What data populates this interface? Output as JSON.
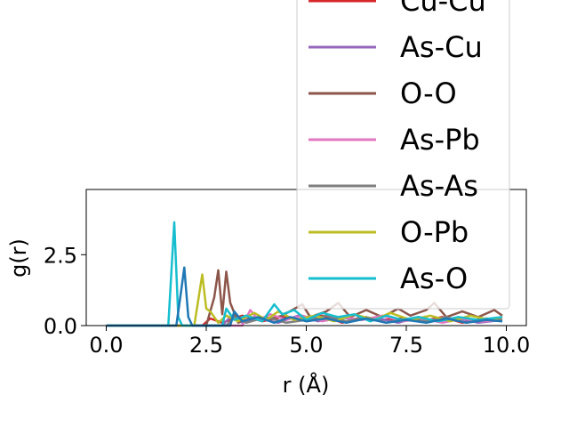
{
  "chart_data": {
    "type": "line",
    "xlabel": "r (Å)",
    "ylabel": "g(r)",
    "xlim": [
      -0.5,
      10.5
    ],
    "ylim": [
      0,
      4.8
    ],
    "xticks": [
      0.0,
      2.5,
      5.0,
      7.5,
      10.0
    ],
    "xtick_labels": [
      "0.0",
      "2.5",
      "5.0",
      "7.5",
      "10.0"
    ],
    "yticks": [
      0.0,
      2.5
    ],
    "ytick_labels": [
      "0.0",
      "2.5"
    ],
    "grid": false,
    "legend_position": "upper-right",
    "series": [
      {
        "name": "Cu-Cu",
        "color": "#d62728",
        "points": [
          [
            0,
            0
          ],
          [
            2.4,
            0
          ],
          [
            2.6,
            0.25
          ],
          [
            2.9,
            0.1
          ],
          [
            3.4,
            0.35
          ],
          [
            3.9,
            0.15
          ],
          [
            4.4,
            0.3
          ],
          [
            4.9,
            0.2
          ],
          [
            5.4,
            0.35
          ],
          [
            5.9,
            0.1
          ],
          [
            6.4,
            0.3
          ],
          [
            6.9,
            0.2
          ],
          [
            7.4,
            0.25
          ],
          [
            7.9,
            0.15
          ],
          [
            8.4,
            0.3
          ],
          [
            8.9,
            0.1
          ],
          [
            9.4,
            0.25
          ],
          [
            9.9,
            0.2
          ]
        ]
      },
      {
        "name": "As-Cu",
        "color": "#9467bd",
        "points": [
          [
            0,
            0
          ],
          [
            2.9,
            0
          ],
          [
            3.1,
            0.3
          ],
          [
            3.4,
            0.1
          ],
          [
            3.8,
            0.25
          ],
          [
            4.3,
            0.1
          ],
          [
            4.8,
            0.35
          ],
          [
            5.3,
            0.15
          ],
          [
            5.8,
            0.3
          ],
          [
            6.3,
            0.2
          ],
          [
            6.8,
            0.25
          ],
          [
            7.3,
            0.1
          ],
          [
            7.8,
            0.3
          ],
          [
            8.3,
            0.15
          ],
          [
            8.8,
            0.25
          ],
          [
            9.3,
            0.1
          ],
          [
            9.9,
            0.2
          ]
        ]
      },
      {
        "name": "O-O",
        "color": "#8c564b",
        "points": [
          [
            0,
            0
          ],
          [
            2.5,
            0
          ],
          [
            2.7,
            1.0
          ],
          [
            2.8,
            1.95
          ],
          [
            2.9,
            0.4
          ],
          [
            3.0,
            1.9
          ],
          [
            3.1,
            0.8
          ],
          [
            3.3,
            0.1
          ],
          [
            3.6,
            0.3
          ],
          [
            4.0,
            0.2
          ],
          [
            4.4,
            0.35
          ],
          [
            4.9,
            0.75
          ],
          [
            5.1,
            0.3
          ],
          [
            5.5,
            0.5
          ],
          [
            5.8,
            0.8
          ],
          [
            6.1,
            0.3
          ],
          [
            6.5,
            0.55
          ],
          [
            6.9,
            0.3
          ],
          [
            7.3,
            0.6
          ],
          [
            7.6,
            0.35
          ],
          [
            8.0,
            0.55
          ],
          [
            8.2,
            0.8
          ],
          [
            8.5,
            0.3
          ],
          [
            8.9,
            0.5
          ],
          [
            9.3,
            0.3
          ],
          [
            9.7,
            0.55
          ],
          [
            9.9,
            0.35
          ]
        ]
      },
      {
        "name": "As-Pb",
        "color": "#e377c2",
        "points": [
          [
            0,
            0
          ],
          [
            3.4,
            0
          ],
          [
            3.6,
            0.55
          ],
          [
            3.8,
            0.2
          ],
          [
            4.1,
            0.4
          ],
          [
            4.5,
            0.2
          ],
          [
            4.9,
            0.35
          ],
          [
            5.4,
            0.15
          ],
          [
            5.9,
            0.3
          ],
          [
            6.4,
            0.2
          ],
          [
            6.9,
            0.35
          ],
          [
            7.4,
            0.15
          ],
          [
            7.9,
            0.25
          ],
          [
            8.4,
            0.1
          ],
          [
            8.9,
            0.25
          ],
          [
            9.4,
            0.15
          ],
          [
            9.9,
            0.2
          ]
        ]
      },
      {
        "name": "As-As",
        "color": "#7f7f7f",
        "points": [
          [
            0,
            0
          ],
          [
            3.0,
            0
          ],
          [
            3.2,
            0.3
          ],
          [
            3.5,
            0.1
          ],
          [
            4.0,
            0.3
          ],
          [
            4.5,
            0.1
          ],
          [
            5.0,
            0.2
          ],
          [
            5.5,
            0.35
          ],
          [
            6.0,
            0.15
          ],
          [
            6.5,
            0.3
          ],
          [
            7.0,
            0.1
          ],
          [
            7.5,
            0.25
          ],
          [
            8.0,
            0.15
          ],
          [
            8.5,
            0.3
          ],
          [
            9.0,
            0.1
          ],
          [
            9.5,
            0.25
          ],
          [
            9.9,
            0.2
          ]
        ]
      },
      {
        "name": "O-Pb",
        "color": "#bcbd22",
        "points": [
          [
            0,
            0
          ],
          [
            2.2,
            0
          ],
          [
            2.4,
            1.8
          ],
          [
            2.5,
            0.6
          ],
          [
            2.6,
            0.5
          ],
          [
            2.8,
            0.1
          ],
          [
            3.0,
            0.35
          ],
          [
            3.3,
            0.15
          ],
          [
            3.7,
            0.45
          ],
          [
            4.0,
            0.2
          ],
          [
            4.3,
            0.5
          ],
          [
            4.7,
            0.2
          ],
          [
            5.2,
            0.35
          ],
          [
            5.7,
            0.15
          ],
          [
            6.2,
            0.4
          ],
          [
            6.7,
            0.2
          ],
          [
            7.1,
            0.45
          ],
          [
            7.6,
            0.2
          ],
          [
            8.1,
            0.35
          ],
          [
            8.6,
            0.15
          ],
          [
            9.1,
            0.35
          ],
          [
            9.6,
            0.2
          ],
          [
            9.9,
            0.3
          ]
        ]
      },
      {
        "name": "As-O",
        "color": "#17becf",
        "points": [
          [
            0,
            0
          ],
          [
            1.55,
            0
          ],
          [
            1.7,
            3.65
          ],
          [
            1.8,
            0.3
          ],
          [
            1.9,
            0
          ],
          [
            2.9,
            0
          ],
          [
            3.0,
            0.6
          ],
          [
            3.2,
            0.2
          ],
          [
            3.5,
            0.35
          ],
          [
            3.9,
            0.15
          ],
          [
            4.2,
            0.75
          ],
          [
            4.4,
            0.4
          ],
          [
            4.7,
            0.55
          ],
          [
            5.0,
            0.2
          ],
          [
            5.4,
            0.45
          ],
          [
            5.8,
            0.3
          ],
          [
            6.2,
            0.4
          ],
          [
            6.6,
            0.15
          ],
          [
            7.0,
            0.35
          ],
          [
            7.4,
            0.2
          ],
          [
            7.8,
            0.3
          ],
          [
            8.3,
            0.15
          ],
          [
            8.8,
            0.3
          ],
          [
            9.3,
            0.2
          ],
          [
            9.9,
            0.3
          ]
        ]
      },
      {
        "name": "",
        "color": "#1f77b4",
        "points": [
          [
            0,
            0
          ],
          [
            1.75,
            0
          ],
          [
            1.85,
            1.0
          ],
          [
            1.95,
            2.05
          ],
          [
            2.05,
            0.3
          ],
          [
            2.15,
            0
          ],
          [
            3.1,
            0
          ],
          [
            3.2,
            0.5
          ],
          [
            3.4,
            0.15
          ],
          [
            3.8,
            0.3
          ],
          [
            4.2,
            0.1
          ],
          [
            4.6,
            0.3
          ],
          [
            5.0,
            0.15
          ],
          [
            5.5,
            0.25
          ],
          [
            6.0,
            0.1
          ],
          [
            6.5,
            0.25
          ],
          [
            7.0,
            0.1
          ],
          [
            7.5,
            0.2
          ],
          [
            8.0,
            0.1
          ],
          [
            8.5,
            0.25
          ],
          [
            9.0,
            0.1
          ],
          [
            9.5,
            0.2
          ],
          [
            9.9,
            0.15
          ]
        ]
      }
    ],
    "legend_entries": [
      "Cu-Cu",
      "As-Cu",
      "O-O",
      "As-Pb",
      "As-As",
      "O-Pb",
      "As-O"
    ],
    "legend_colors": [
      "#d62728",
      "#9467bd",
      "#8c564b",
      "#e377c2",
      "#7f7f7f",
      "#bcbd22",
      "#17becf"
    ]
  }
}
